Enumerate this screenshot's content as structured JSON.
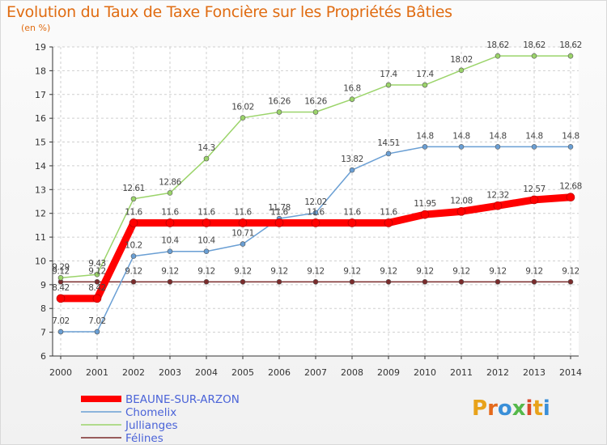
{
  "title": "Evolution du Taux de Taxe Foncière sur les Propriétés Bâties",
  "unit_label": "(en %)",
  "logo": {
    "text": "Proxiti"
  },
  "colors": {
    "title": "#e06c12",
    "grid": "#cfcfcf",
    "axis": "#333333",
    "legend_text": "#4a63d8"
  },
  "chart_data": {
    "type": "line",
    "x": [
      "2000",
      "2001",
      "2002",
      "2003",
      "2004",
      "2005",
      "2006",
      "2007",
      "2008",
      "2009",
      "2010",
      "2011",
      "2012",
      "2013",
      "2014"
    ],
    "ylim": [
      6,
      19
    ],
    "yticks": [
      "6",
      "7",
      "8",
      "9",
      "10",
      "11",
      "12",
      "13",
      "14",
      "15",
      "16",
      "17",
      "18",
      "19"
    ],
    "grid": true,
    "legend_position": "bottom-left",
    "series": [
      {
        "name": "BEAUNE-SUR-ARZON",
        "color": "#ff0000",
        "width": 9,
        "values": [
          8.42,
          8.42,
          11.6,
          11.6,
          11.6,
          11.6,
          11.6,
          11.6,
          11.6,
          11.6,
          11.95,
          12.08,
          12.32,
          12.57,
          12.68
        ],
        "labels": [
          "8.42",
          "8.42",
          "11.6",
          "11.6",
          "11.6",
          "11.6",
          "11.6",
          "11.6",
          "11.6",
          "11.6",
          "11.95",
          "12.08",
          "12.32",
          "12.57",
          "12.68"
        ]
      },
      {
        "name": "Chomelix",
        "color": "#6a9fd4",
        "width": 1.5,
        "values": [
          7.02,
          7.02,
          10.2,
          10.4,
          10.4,
          10.71,
          11.78,
          12.02,
          13.82,
          14.51,
          14.8,
          14.8,
          14.8,
          14.8,
          14.8
        ],
        "labels": [
          "7.02",
          "7.02",
          "10.2",
          "10.4",
          "10.4",
          "10.71",
          "11.78",
          "12.02",
          "13.82",
          "14.51",
          "14.8",
          "14.8",
          "14.8",
          "14.8",
          "14.8"
        ]
      },
      {
        "name": "Jullianges",
        "color": "#9bd46a",
        "width": 1.5,
        "values": [
          9.29,
          9.43,
          12.61,
          12.86,
          14.3,
          16.02,
          16.26,
          16.26,
          16.8,
          17.4,
          17.4,
          18.02,
          18.62,
          18.62,
          18.62
        ],
        "labels": [
          "9.29",
          "9.43",
          "12.61",
          "12.86",
          "14.3",
          "16.02",
          "16.26",
          "16.26",
          "16.8",
          "17.4",
          "17.4",
          "18.02",
          "18.62",
          "18.62",
          "18.62"
        ]
      },
      {
        "name": "Félines",
        "color": "#7a2b2b",
        "width": 1.5,
        "values": [
          9.12,
          9.12,
          9.12,
          9.12,
          9.12,
          9.12,
          9.12,
          9.12,
          9.12,
          9.12,
          9.12,
          9.12,
          9.12,
          9.12,
          9.12
        ],
        "labels": [
          "9.12",
          "9.12",
          "9.12",
          "9.12",
          "9.12",
          "9.12",
          "9.12",
          "9.12",
          "9.12",
          "9.12",
          "9.12",
          "9.12",
          "9.12",
          "9.12",
          "9.12"
        ]
      }
    ]
  }
}
